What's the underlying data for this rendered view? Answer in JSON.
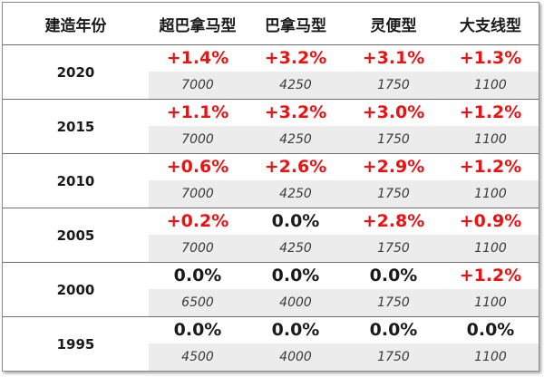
{
  "table": {
    "headers": [
      "建造年份",
      "超巴拿马型",
      "巴拿马型",
      "灵便型",
      "大支线型"
    ],
    "rows": [
      {
        "year": "2020",
        "cells": [
          {
            "pct": "+1.4%",
            "price": "7000"
          },
          {
            "pct": "+3.2%",
            "price": "4250"
          },
          {
            "pct": "+3.1%",
            "price": "1750"
          },
          {
            "pct": "+1.3%",
            "price": "1100"
          }
        ]
      },
      {
        "year": "2015",
        "cells": [
          {
            "pct": "+1.1%",
            "price": "7000"
          },
          {
            "pct": "+3.2%",
            "price": "4250"
          },
          {
            "pct": "+3.0%",
            "price": "1750"
          },
          {
            "pct": "+1.2%",
            "price": "1100"
          }
        ]
      },
      {
        "year": "2010",
        "cells": [
          {
            "pct": "+0.6%",
            "price": "7000"
          },
          {
            "pct": "+2.6%",
            "price": "4250"
          },
          {
            "pct": "+2.9%",
            "price": "1750"
          },
          {
            "pct": "+1.2%",
            "price": "1100"
          }
        ]
      },
      {
        "year": "2005",
        "cells": [
          {
            "pct": "+0.2%",
            "price": "7000"
          },
          {
            "pct": "0.0%",
            "price": "4250"
          },
          {
            "pct": "+2.8%",
            "price": "1750"
          },
          {
            "pct": "+0.9%",
            "price": "1100"
          }
        ]
      },
      {
        "year": "2000",
        "cells": [
          {
            "pct": "0.0%",
            "price": "6500"
          },
          {
            "pct": "0.0%",
            "price": "4000"
          },
          {
            "pct": "0.0%",
            "price": "1750"
          },
          {
            "pct": "+1.2%",
            "price": "1100"
          }
        ]
      },
      {
        "year": "1995",
        "cells": [
          {
            "pct": "0.0%",
            "price": "4500"
          },
          {
            "pct": "0.0%",
            "price": "4000"
          },
          {
            "pct": "0.0%",
            "price": "1750"
          },
          {
            "pct": "0.0%",
            "price": "1100"
          }
        ]
      }
    ]
  },
  "colors": {
    "increase": "#ee1111",
    "unchanged": "#1a1a1a",
    "price_band": "#ececec"
  }
}
